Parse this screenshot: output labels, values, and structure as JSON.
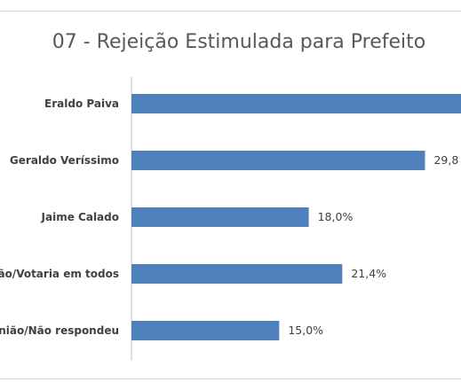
{
  "chart_data": {
    "type": "bar",
    "orientation": "horizontal",
    "title": "07 - Rejeição Estimulada para Prefeito",
    "categories": [
      "Eraldo Paiva",
      "Geraldo Veríssimo",
      "Jaime Calado",
      "Nenhum/Não/Votaria em todos",
      "Sem opinião/Não respondeu"
    ],
    "category_display": [
      "Eraldo Paiva",
      "Geraldo Veríssimo",
      "Jaime Calado",
      "ão/Votaria em todos",
      "inião/Não respondeu"
    ],
    "values": [
      35.0,
      29.8,
      18.0,
      21.4,
      15.0
    ],
    "value_labels": [
      "",
      "29,8",
      "18,0%",
      "21,4%",
      "15,0%"
    ],
    "xlim": [
      0,
      40
    ],
    "bar_color": "#4f81bd",
    "axis_color": "#bfbfbf",
    "grid": false,
    "legend": "none"
  }
}
